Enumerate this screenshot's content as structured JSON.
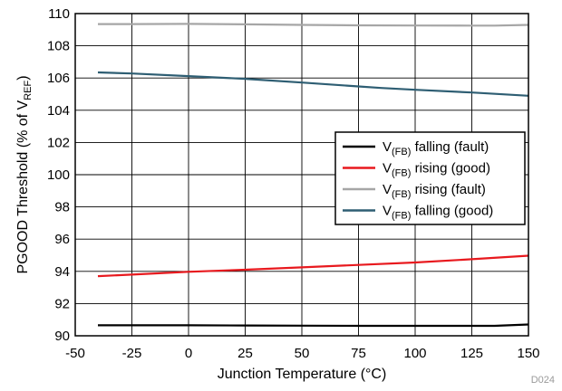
{
  "chart_data": {
    "type": "line",
    "xlabel": "Junction Temperature (°C)",
    "ylabel": {
      "main": "PGOOD Threshold (% of V",
      "sub": "REF",
      "close": ")"
    },
    "figure_id": "D024",
    "xlim": [
      -50,
      150
    ],
    "ylim": [
      90,
      110
    ],
    "x_ticks": [
      "-50",
      "-25",
      "0",
      "25",
      "50",
      "75",
      "100",
      "125",
      "150"
    ],
    "y_ticks": [
      "90",
      "92",
      "94",
      "96",
      "98",
      "100",
      "102",
      "104",
      "106",
      "108",
      "110"
    ],
    "grid": true,
    "legend_position": "right",
    "series": [
      {
        "name": "V(FB) falling (fault)",
        "name_parts": {
          "pre": "V",
          "sub": "(FB)",
          "post": " falling (fault)"
        },
        "color": "#000000",
        "x": [
          -40,
          -25,
          0,
          25,
          50,
          75,
          100,
          125,
          135,
          150
        ],
        "y": [
          90.65,
          90.65,
          90.65,
          90.64,
          90.63,
          90.62,
          90.62,
          90.62,
          90.62,
          90.7
        ]
      },
      {
        "name": "V(FB) rising (good)",
        "name_parts": {
          "pre": "V",
          "sub": "(FB)",
          "post": " rising (good)"
        },
        "color": "#e8191e",
        "x": [
          -40,
          -25,
          0,
          25,
          50,
          75,
          100,
          125,
          150
        ],
        "y": [
          93.7,
          93.8,
          93.97,
          94.1,
          94.25,
          94.4,
          94.55,
          94.75,
          94.97
        ]
      },
      {
        "name": "V(FB) rising (fault)",
        "name_parts": {
          "pre": "V",
          "sub": "(FB)",
          "post": " rising (fault)"
        },
        "color": "#a6a6a6",
        "x": [
          -40,
          -25,
          0,
          25,
          50,
          75,
          100,
          125,
          135,
          150
        ],
        "y": [
          109.35,
          109.35,
          109.36,
          109.33,
          109.3,
          109.27,
          109.26,
          109.25,
          109.25,
          109.3
        ]
      },
      {
        "name": "V(FB) falling (good)",
        "name_parts": {
          "pre": "V",
          "sub": "(FB)",
          "post": " falling (good)"
        },
        "color": "#2e5e73",
        "x": [
          -40,
          -25,
          0,
          25,
          50,
          75,
          85,
          100,
          125,
          150
        ],
        "y": [
          106.35,
          106.28,
          106.12,
          105.95,
          105.72,
          105.48,
          105.38,
          105.27,
          105.1,
          104.9
        ]
      }
    ]
  }
}
